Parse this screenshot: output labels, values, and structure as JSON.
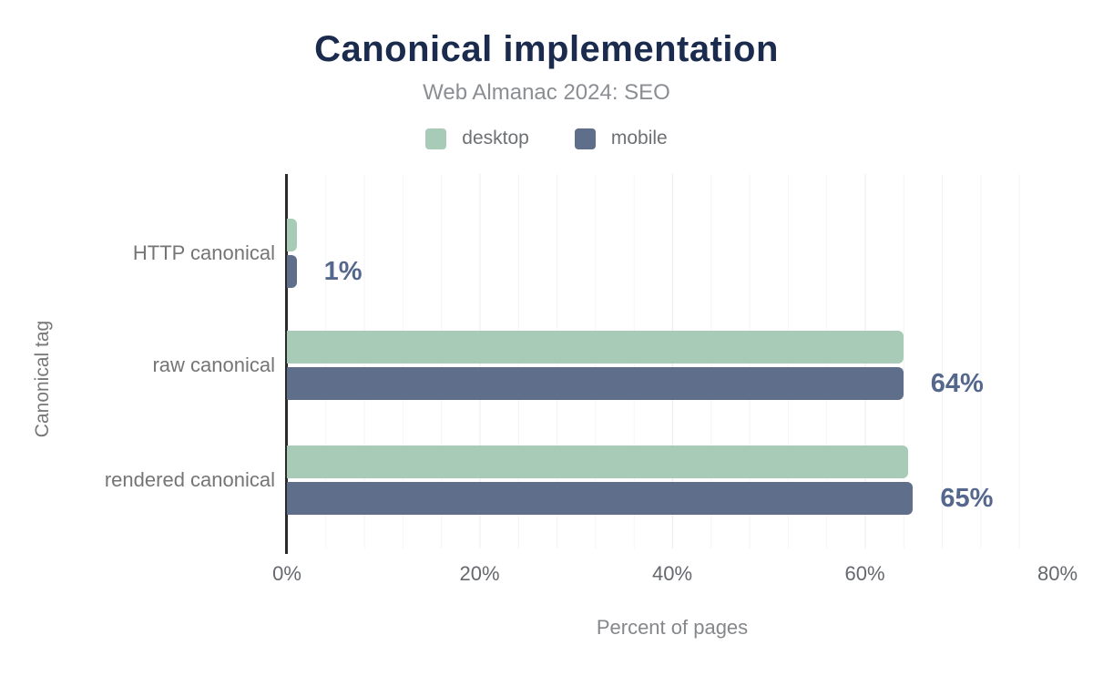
{
  "chart_data": {
    "type": "bar",
    "orientation": "horizontal",
    "title": "Canonical implementation",
    "subtitle": "Web Almanac 2024: SEO",
    "xlabel": "Percent of pages",
    "ylabel": "Canonical tag",
    "xlim": [
      0,
      80
    ],
    "xticks": [
      "0%",
      "20%",
      "40%",
      "60%",
      "80%"
    ],
    "grid": "vertical, minor every 4%, major every 20%",
    "legend_position": "top",
    "categories": [
      "HTTP canonical",
      "raw canonical",
      "rendered canonical"
    ],
    "series": [
      {
        "name": "desktop",
        "color": "#a8cbb7",
        "values": [
          1,
          64,
          64.5
        ]
      },
      {
        "name": "mobile",
        "color": "#5f6e8a",
        "values": [
          1,
          64,
          65
        ]
      }
    ],
    "value_labels": [
      "1%",
      "64%",
      "65%"
    ],
    "colors": {
      "title": "#1b2b4d",
      "value_label": "#55678c",
      "axis_line": "#2b2b2b"
    }
  }
}
